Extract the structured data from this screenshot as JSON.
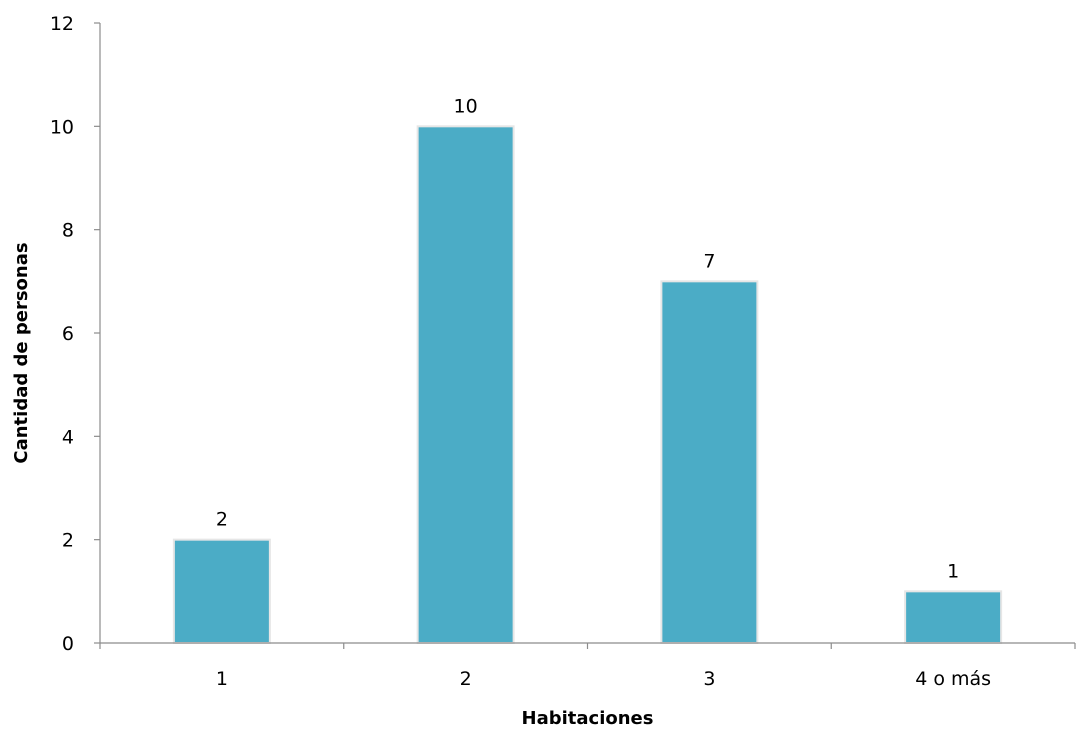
{
  "chart_data": {
    "type": "bar",
    "categories": [
      "1",
      "2",
      "3",
      "4 o más"
    ],
    "values": [
      2,
      10,
      7,
      1
    ],
    "data_labels": [
      "2",
      "10",
      "7",
      "1"
    ],
    "y_ticks": [
      "0",
      "2",
      "4",
      "6",
      "8",
      "10",
      "12"
    ],
    "ylim": [
      0,
      12
    ],
    "xlabel": "Habitaciones",
    "ylabel": "Cantidad de personas",
    "bar_color": "#4BACC6",
    "grid": false,
    "legend": "none"
  }
}
